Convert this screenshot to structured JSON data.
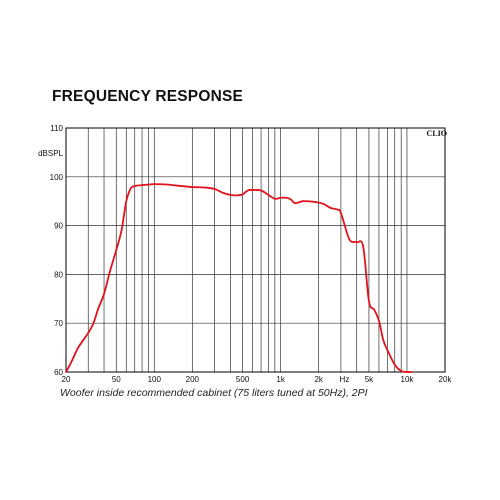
{
  "title": "FREQUENCY RESPONSE",
  "caption": "Woofer inside recommended cabinet (75 liters tuned at 50Hz), 2PI",
  "colors": {
    "curve": "#e0121b",
    "grid": "#333333",
    "frame": "#000000"
  },
  "chart_data": {
    "type": "line",
    "title": "FREQUENCY RESPONSE",
    "xlabel": "Hz",
    "ylabel": "dBSPL",
    "x_scale": "log",
    "xlim": [
      20,
      20000
    ],
    "ylim": [
      60,
      110
    ],
    "grid": true,
    "brand_label": "CLIO",
    "x_tick_labels": [
      {
        "value": 20,
        "label": "20"
      },
      {
        "value": 50,
        "label": "50"
      },
      {
        "value": 100,
        "label": "100"
      },
      {
        "value": 200,
        "label": "200"
      },
      {
        "value": 500,
        "label": "500"
      },
      {
        "value": 1000,
        "label": "1k"
      },
      {
        "value": 2000,
        "label": "2k"
      },
      {
        "value": 5000,
        "label": "5k"
      },
      {
        "value": 10000,
        "label": "10k"
      },
      {
        "value": 20000,
        "label": "20k"
      }
    ],
    "x_unit_label": {
      "value": 3200,
      "label": "Hz"
    },
    "y_tick_labels": [
      {
        "value": 60,
        "label": "60"
      },
      {
        "value": 70,
        "label": "70"
      },
      {
        "value": 80,
        "label": "80"
      },
      {
        "value": 90,
        "label": "90"
      },
      {
        "value": 100,
        "label": "100"
      },
      {
        "value": 110,
        "label": "110"
      }
    ],
    "series": [
      {
        "x": [
          20,
          22,
          25,
          30,
          33,
          36,
          40,
          45,
          50,
          55,
          60,
          65,
          70,
          80,
          90,
          100,
          130,
          150,
          200,
          250,
          300,
          350,
          400,
          450,
          500,
          550,
          600,
          700,
          800,
          900,
          1000,
          1100,
          1200,
          1300,
          1500,
          1800,
          2000,
          2200,
          2500,
          2800,
          3000,
          3500,
          4000,
          4500,
          5000,
          5500,
          6000,
          6500,
          7000,
          8000,
          9000,
          10000,
          11000
        ],
        "y": [
          60,
          62,
          65,
          68,
          70,
          73,
          76,
          81,
          85,
          89,
          95,
          97.6,
          98.1,
          98.3,
          98.4,
          98.5,
          98.4,
          98.2,
          97.9,
          97.8,
          97.5,
          96.7,
          96.3,
          96.2,
          96.4,
          97.2,
          97.3,
          97.2,
          96.3,
          95.5,
          95.7,
          95.7,
          95.4,
          94.6,
          95.0,
          94.9,
          94.7,
          94.4,
          93.6,
          93.3,
          92.6,
          87.2,
          86.6,
          85.7,
          74.5,
          72.8,
          70.5,
          66.5,
          64.5,
          61.5,
          60.2,
          60.0,
          60.0
        ]
      }
    ]
  }
}
